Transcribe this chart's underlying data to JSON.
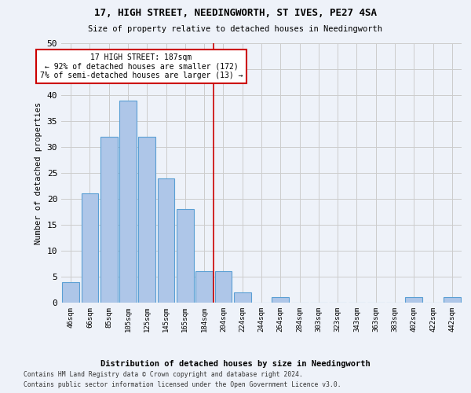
{
  "title": "17, HIGH STREET, NEEDINGWORTH, ST IVES, PE27 4SA",
  "subtitle": "Size of property relative to detached houses in Needingworth",
  "xlabel": "Distribution of detached houses by size in Needingworth",
  "ylabel": "Number of detached properties",
  "footer_line1": "Contains HM Land Registry data © Crown copyright and database right 2024.",
  "footer_line2": "Contains public sector information licensed under the Open Government Licence v3.0.",
  "bin_labels": [
    "46sqm",
    "66sqm",
    "85sqm",
    "105sqm",
    "125sqm",
    "145sqm",
    "165sqm",
    "184sqm",
    "204sqm",
    "224sqm",
    "244sqm",
    "264sqm",
    "284sqm",
    "303sqm",
    "323sqm",
    "343sqm",
    "363sqm",
    "383sqm",
    "402sqm",
    "422sqm",
    "442sqm"
  ],
  "bar_values": [
    4,
    21,
    32,
    39,
    32,
    24,
    18,
    6,
    6,
    2,
    0,
    1,
    0,
    0,
    0,
    0,
    0,
    0,
    1,
    0,
    1
  ],
  "bar_color": "#aec6e8",
  "bar_edge_color": "#5a9fd4",
  "bar_linewidth": 0.8,
  "vline_bin_index": 7.5,
  "vline_color": "#cc0000",
  "annotation_text": "17 HIGH STREET: 187sqm\n← 92% of detached houses are smaller (172)\n7% of semi-detached houses are larger (13) →",
  "annotation_box_color": "#ffffff",
  "annotation_box_edge_color": "#cc0000",
  "ylim": [
    0,
    50
  ],
  "yticks": [
    0,
    5,
    10,
    15,
    20,
    25,
    30,
    35,
    40,
    45,
    50
  ],
  "grid_color": "#cccccc",
  "background_color": "#eef2f9",
  "figsize": [
    6.0,
    5.0
  ],
  "dpi": 100
}
